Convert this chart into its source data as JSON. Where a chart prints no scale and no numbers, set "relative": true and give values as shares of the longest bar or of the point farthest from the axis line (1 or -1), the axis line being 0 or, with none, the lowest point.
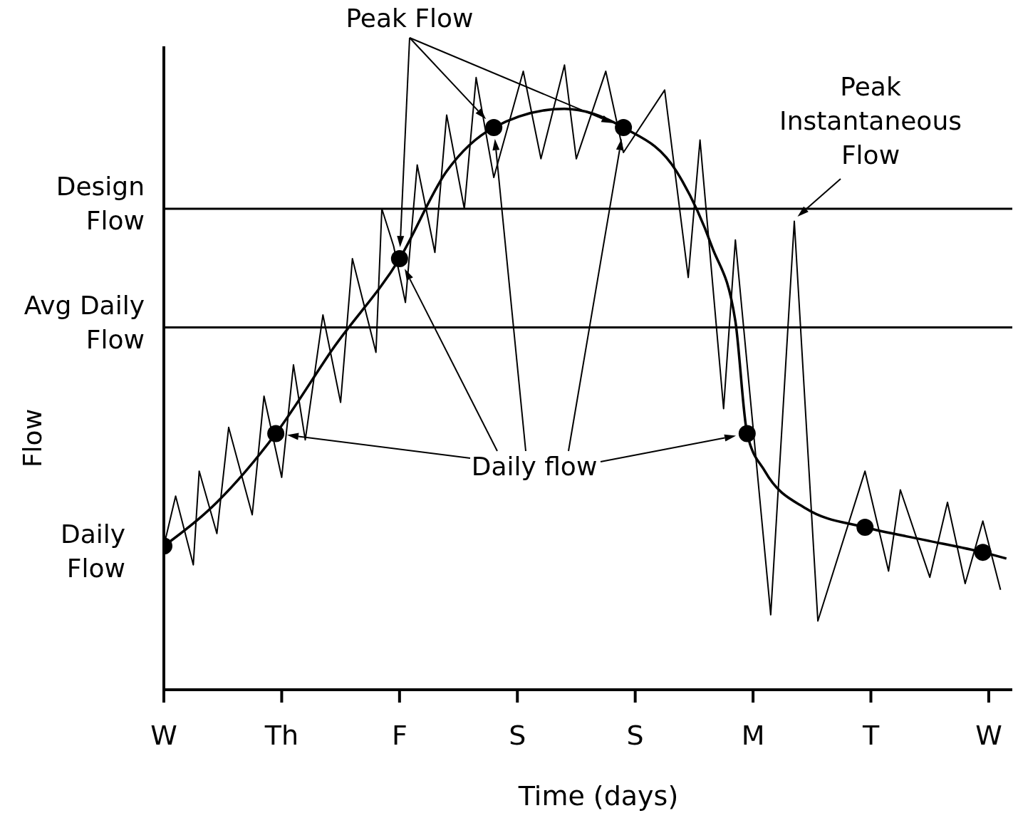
{
  "chart_data": {
    "type": "line",
    "relative": true,
    "xlabel": "Time (days)",
    "ylabel": "Flow",
    "categories": [
      "W",
      null,
      null,
      null,
      null,
      null,
      null,
      null,
      null,
      null,
      null,
      null,
      null,
      null,
      null,
      null,
      null,
      null,
      null,
      null,
      "Th",
      null,
      null,
      null,
      null,
      null,
      null,
      null,
      null,
      null,
      null,
      null,
      null,
      null,
      null,
      null,
      null,
      null,
      null,
      null,
      "F",
      null,
      null,
      null,
      null,
      null,
      null,
      null,
      null,
      null,
      null,
      null,
      null,
      null,
      null,
      null,
      null,
      null,
      null,
      null,
      "S",
      null,
      null,
      null,
      null,
      null,
      null,
      null,
      null,
      null,
      null,
      null,
      null,
      null,
      null,
      null,
      null,
      null,
      null,
      null,
      "S",
      null,
      null,
      null,
      null,
      null,
      null,
      null,
      null,
      null,
      null,
      null,
      null,
      null,
      null,
      null,
      null,
      null,
      null,
      null,
      "M",
      null,
      null,
      null,
      null,
      null,
      null,
      null,
      null,
      null,
      null,
      null,
      null,
      null,
      null,
      null,
      null,
      null,
      null,
      null,
      "T",
      null,
      null,
      null,
      null,
      null,
      null,
      null,
      null,
      null,
      null,
      null,
      null,
      null,
      null,
      null,
      null,
      null,
      null,
      null,
      "W",
      null,
      null,
      null
    ],
    "series": [
      {
        "color": "#000000",
        "marker": "none",
        "values": [
          0.23,
          null,
          0.31,
          null,
          null,
          0.2,
          0.35,
          null,
          null,
          0.25,
          null,
          0.42,
          null,
          null,
          null,
          0.28,
          null,
          0.47,
          null,
          null,
          0.34,
          null,
          0.52,
          null,
          0.4,
          null,
          null,
          0.6,
          null,
          null,
          0.46,
          null,
          0.69,
          null,
          null,
          null,
          0.54,
          0.77,
          null,
          0.71,
          null,
          0.62,
          null,
          0.84,
          null,
          null,
          0.7,
          null,
          0.92,
          null,
          null,
          0.77,
          null,
          0.98,
          null,
          null,
          0.82,
          null,
          null,
          null,
          null,
          0.99,
          null,
          null,
          0.85,
          null,
          null,
          null,
          1.0,
          null,
          0.85,
          null,
          null,
          null,
          null,
          0.99,
          null,
          null,
          0.86,
          null,
          null,
          null,
          null,
          null,
          null,
          0.96,
          null,
          null,
          null,
          0.66,
          null,
          0.88,
          null,
          null,
          null,
          0.45,
          null,
          0.72,
          null,
          null,
          null,
          null,
          null,
          0.12,
          null,
          null,
          null,
          0.75,
          null,
          null,
          null,
          0.11,
          null,
          null,
          null,
          null,
          null,
          null,
          null,
          0.35,
          null,
          null,
          null,
          0.19,
          null,
          0.32,
          null,
          null,
          null,
          null,
          0.18,
          null,
          null,
          0.3,
          null,
          null,
          0.17,
          null,
          null,
          0.27,
          null,
          null,
          0.16,
          null
        ]
      },
      {
        "color": "#000000",
        "marker": "none",
        "values": [
          0.23,
          null,
          null,
          null,
          null,
          null,
          null,
          null,
          null,
          0.3,
          null,
          null,
          null,
          null,
          null,
          null,
          null,
          null,
          null,
          0.41,
          null,
          null,
          null,
          null,
          null,
          null,
          null,
          null,
          null,
          0.55,
          null,
          null,
          null,
          null,
          null,
          null,
          null,
          null,
          null,
          null,
          0.69,
          null,
          null,
          null,
          null,
          null,
          null,
          null,
          0.83,
          null,
          null,
          null,
          null,
          null,
          null,
          null,
          0.9,
          null,
          null,
          null,
          null,
          null,
          null,
          null,
          null,
          null,
          null,
          null,
          0.93,
          null,
          null,
          null,
          null,
          null,
          null,
          null,
          null,
          null,
          0.9,
          null,
          null,
          null,
          null,
          null,
          null,
          null,
          null,
          0.83,
          null,
          null,
          null,
          null,
          null,
          0.71,
          null,
          null,
          null,
          0.59,
          null,
          0.41,
          null,
          null,
          0.35,
          null,
          null,
          null,
          null,
          null,
          null,
          0.29,
          null,
          null,
          null,
          null,
          null,
          null,
          null,
          null,
          null,
          0.26,
          null,
          null,
          null,
          null,
          null,
          null,
          null,
          null,
          null,
          0.24,
          null,
          null,
          null,
          null,
          null,
          null,
          null,
          null,
          null,
          0.22,
          null,
          null,
          null,
          0.21
        ]
      },
      {
        "type": "scatter",
        "color": "#000000",
        "marker": "circle",
        "values": [
          0.23,
          null,
          null,
          null,
          null,
          null,
          null,
          null,
          null,
          null,
          null,
          null,
          null,
          null,
          null,
          null,
          null,
          null,
          null,
          0.41,
          null,
          null,
          null,
          null,
          null,
          null,
          null,
          null,
          null,
          null,
          null,
          null,
          null,
          null,
          null,
          null,
          null,
          null,
          null,
          null,
          0.69,
          null,
          null,
          null,
          null,
          null,
          null,
          null,
          null,
          null,
          null,
          null,
          null,
          null,
          null,
          null,
          0.9,
          null,
          null,
          null,
          null,
          null,
          null,
          null,
          null,
          null,
          null,
          null,
          null,
          null,
          null,
          null,
          null,
          null,
          null,
          null,
          null,
          null,
          0.9,
          null,
          null,
          null,
          null,
          null,
          null,
          null,
          null,
          null,
          null,
          null,
          null,
          null,
          null,
          null,
          null,
          null,
          null,
          null,
          null,
          0.41,
          null,
          null,
          null,
          null,
          null,
          null,
          null,
          null,
          null,
          null,
          null,
          null,
          null,
          null,
          null,
          null,
          null,
          null,
          null,
          0.26,
          null,
          null,
          null,
          null,
          null,
          null,
          null,
          null,
          null,
          null,
          null,
          null,
          null,
          null,
          null,
          null,
          null,
          null,
          null,
          0.22,
          null,
          null,
          null,
          null
        ]
      }
    ],
    "ref_lines": [
      {
        "axis": "y",
        "value": 0.77,
        "label": "Design Flow",
        "color": "#000000"
      },
      {
        "axis": "y",
        "value": 0.58,
        "label": "Avg Daily Flow",
        "color": "#000000"
      }
    ],
    "annotations": [
      "Peak Flow",
      "Peak Instantaneous Flow",
      "Daily flow",
      {
        "text": "Daily Flow",
        "x": "W",
        "y": 0.23
      }
    ]
  }
}
